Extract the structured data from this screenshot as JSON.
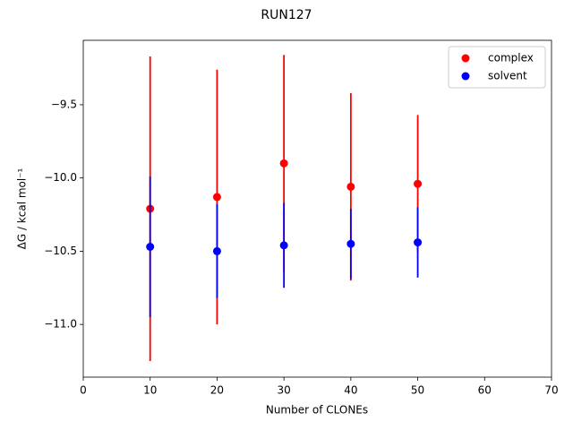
{
  "chart_data": {
    "type": "scatter",
    "title": "RUN127",
    "xlabel": "Number of CLONEs",
    "ylabel": "ΔG / kcal mol⁻¹",
    "x": [
      10,
      20,
      30,
      40,
      50
    ],
    "series": [
      {
        "name": "complex",
        "color": "#ff0000",
        "values": [
          -10.21,
          -10.13,
          -9.9,
          -10.06,
          -10.04
        ],
        "errors": [
          1.04,
          0.87,
          0.74,
          0.64,
          0.47
        ]
      },
      {
        "name": "solvent",
        "color": "#0000ff",
        "values": [
          -10.47,
          -10.5,
          -10.46,
          -10.45,
          -10.44
        ],
        "errors": [
          0.48,
          0.32,
          0.29,
          0.24,
          0.24
        ]
      }
    ],
    "xlim": [
      0,
      70
    ],
    "xticks": [
      0,
      10,
      20,
      30,
      40,
      50,
      60,
      70
    ],
    "ylim": [
      -11.36,
      -9.06
    ],
    "yticks": [
      {
        "value": -11.0,
        "label": "−11.0"
      },
      {
        "value": -10.5,
        "label": "−10.5"
      },
      {
        "value": -10.0,
        "label": "−10.0"
      },
      {
        "value": -9.5,
        "label": "−9.5"
      }
    ],
    "legend": "upper right"
  }
}
